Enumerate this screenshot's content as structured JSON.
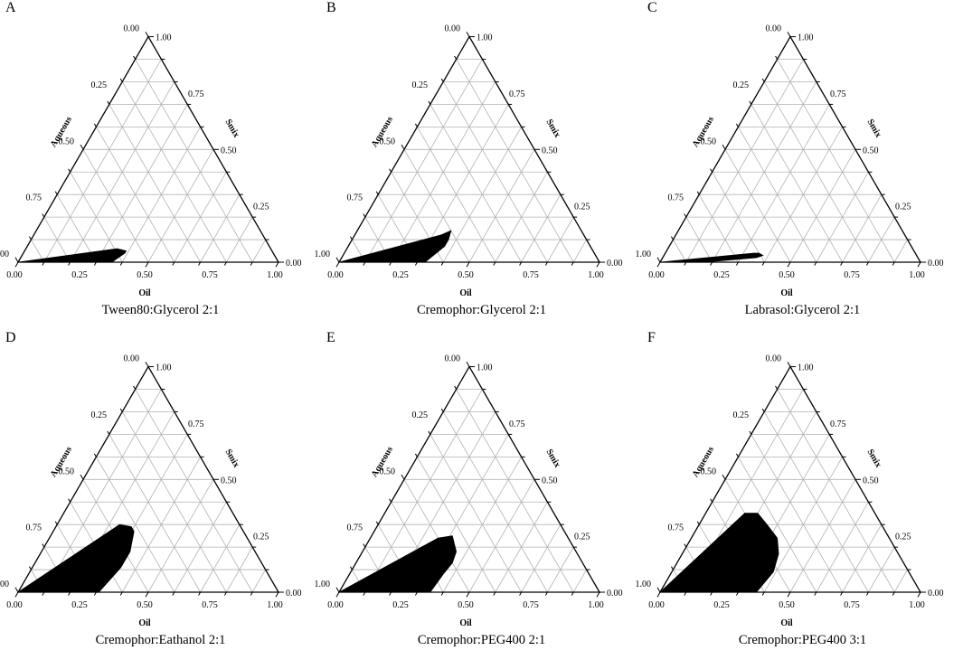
{
  "figure": {
    "chart_data": [
      {
        "type": "area",
        "panel_label": "A",
        "title": "Tween80:Glycerol 2:1",
        "axes": {
          "bottom": "Oil",
          "left": "Aqueous",
          "right": "Smix"
        },
        "ticks": [
          "0.00",
          "0.25",
          "0.50",
          "0.75",
          "1.00"
        ],
        "ternary": true,
        "grid": true,
        "region": {
          "name": "",
          "points": [
            {
              "oil": 0.0,
              "aqueous": 1.0,
              "smix": 0.0
            },
            {
              "oil": 0.35,
              "aqueous": 0.59,
              "smix": 0.06
            },
            {
              "oil": 0.39,
              "aqueous": 0.56,
              "smix": 0.05
            },
            {
              "oil": 0.39,
              "aqueous": 0.57,
              "smix": 0.04
            },
            {
              "oil": 0.36,
              "aqueous": 0.64,
              "smix": 0.0
            }
          ]
        }
      },
      {
        "type": "area",
        "panel_label": "B",
        "title": "Cremophor:Glycerol 2:1",
        "axes": {
          "bottom": "Oil",
          "left": "Aqueous",
          "right": "Smix"
        },
        "ticks": [
          "0.00",
          "0.25",
          "0.50",
          "0.75",
          "1.00"
        ],
        "ternary": true,
        "grid": true,
        "region": {
          "name": "",
          "points": [
            {
              "oil": 0.0,
              "aqueous": 1.0,
              "smix": 0.0
            },
            {
              "oil": 0.33,
              "aqueous": 0.55,
              "smix": 0.12
            },
            {
              "oil": 0.36,
              "aqueous": 0.5,
              "smix": 0.14
            },
            {
              "oil": 0.37,
              "aqueous": 0.53,
              "smix": 0.1
            },
            {
              "oil": 0.37,
              "aqueous": 0.56,
              "smix": 0.07
            },
            {
              "oil": 0.33,
              "aqueous": 0.67,
              "smix": 0.0
            }
          ]
        }
      },
      {
        "type": "area",
        "panel_label": "C",
        "title": "Labrasol:Glycerol 2:1",
        "axes": {
          "bottom": "Oil",
          "left": "Aqueous",
          "right": "Smix"
        },
        "ticks": [
          "0.00",
          "0.25",
          "0.50",
          "0.75",
          "1.00"
        ],
        "ternary": true,
        "grid": true,
        "region": {
          "name": "",
          "points": [
            {
              "oil": 0.0,
              "aqueous": 1.0,
              "smix": 0.0
            },
            {
              "oil": 0.34,
              "aqueous": 0.62,
              "smix": 0.04
            },
            {
              "oil": 0.36,
              "aqueous": 0.6,
              "smix": 0.04
            },
            {
              "oil": 0.38,
              "aqueous": 0.59,
              "smix": 0.03
            },
            {
              "oil": 0.36,
              "aqueous": 0.62,
              "smix": 0.02
            },
            {
              "oil": 0.17,
              "aqueous": 0.83,
              "smix": 0.0
            }
          ]
        }
      },
      {
        "type": "area",
        "panel_label": "D",
        "title": "Cremophor:Eathanol 2:1",
        "axes": {
          "bottom": "Oil",
          "left": "Aqueous",
          "right": "Smix"
        },
        "ticks": [
          "0.00",
          "0.25",
          "0.50",
          "0.75",
          "1.00"
        ],
        "ternary": true,
        "grid": true,
        "region": {
          "name": "",
          "points": [
            {
              "oil": 0.0,
              "aqueous": 1.0,
              "smix": 0.0
            },
            {
              "oil": 0.24,
              "aqueous": 0.46,
              "smix": 0.3
            },
            {
              "oil": 0.29,
              "aqueous": 0.42,
              "smix": 0.29
            },
            {
              "oil": 0.31,
              "aqueous": 0.42,
              "smix": 0.27
            },
            {
              "oil": 0.34,
              "aqueous": 0.48,
              "smix": 0.18
            },
            {
              "oil": 0.34,
              "aqueous": 0.55,
              "smix": 0.11
            },
            {
              "oil": 0.31,
              "aqueous": 0.69,
              "smix": 0.0
            }
          ]
        }
      },
      {
        "type": "area",
        "panel_label": "E",
        "title": "Cremophor:PEG400 2:1",
        "axes": {
          "bottom": "Oil",
          "left": "Aqueous",
          "right": "Smix"
        },
        "ticks": [
          "0.00",
          "0.25",
          "0.50",
          "0.75",
          "1.00"
        ],
        "ternary": true,
        "grid": true,
        "region": {
          "name": "",
          "points": [
            {
              "oil": 0.0,
              "aqueous": 1.0,
              "smix": 0.0
            },
            {
              "oil": 0.26,
              "aqueous": 0.5,
              "smix": 0.24
            },
            {
              "oil": 0.31,
              "aqueous": 0.44,
              "smix": 0.25
            },
            {
              "oil": 0.36,
              "aqueous": 0.46,
              "smix": 0.18
            },
            {
              "oil": 0.37,
              "aqueous": 0.5,
              "smix": 0.13
            },
            {
              "oil": 0.36,
              "aqueous": 0.56,
              "smix": 0.08
            },
            {
              "oil": 0.35,
              "aqueous": 0.65,
              "smix": 0.0
            }
          ]
        }
      },
      {
        "type": "area",
        "panel_label": "F",
        "title": "Cremophor:PEG400 3:1",
        "axes": {
          "bottom": "Oil",
          "left": "Aqueous",
          "right": "Smix"
        },
        "ticks": [
          "0.00",
          "0.25",
          "0.50",
          "0.75",
          "1.00"
        ],
        "ternary": true,
        "grid": true,
        "region": {
          "name": "",
          "points": [
            {
              "oil": 0.0,
              "aqueous": 1.0,
              "smix": 0.0
            },
            {
              "oil": 0.15,
              "aqueous": 0.5,
              "smix": 0.35
            },
            {
              "oil": 0.2,
              "aqueous": 0.45,
              "smix": 0.35
            },
            {
              "oil": 0.26,
              "aqueous": 0.44,
              "smix": 0.3
            },
            {
              "oil": 0.33,
              "aqueous": 0.43,
              "smix": 0.24
            },
            {
              "oil": 0.37,
              "aqueous": 0.46,
              "smix": 0.17
            },
            {
              "oil": 0.39,
              "aqueous": 0.52,
              "smix": 0.09
            },
            {
              "oil": 0.37,
              "aqueous": 0.63,
              "smix": 0.0
            }
          ]
        }
      }
    ]
  }
}
